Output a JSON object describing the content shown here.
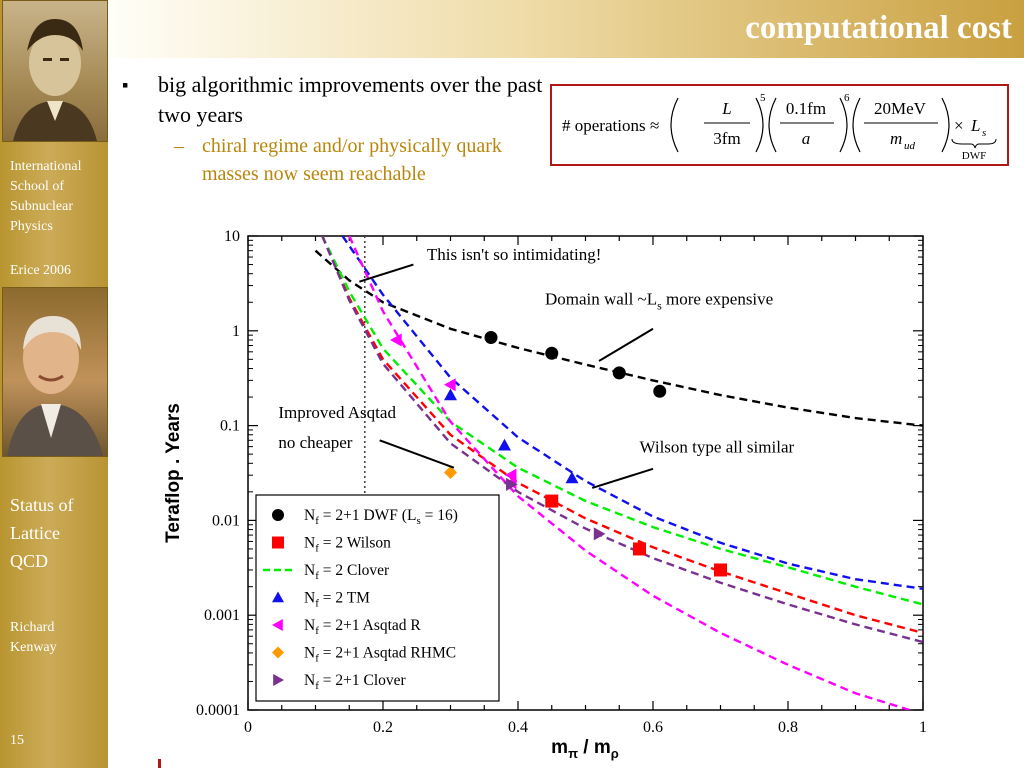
{
  "sidebar": {
    "school": "International School of Subnuclear Physics",
    "event": "Erice 2006",
    "talk": "Status of Lattice QCD",
    "author": "Richard Kenway",
    "page": "15"
  },
  "header": {
    "title": "computational cost"
  },
  "bullets": {
    "main": "big algorithmic improvements over the past two years",
    "sub_dash": "–",
    "sub": "chiral regime and/or physically quark masses now seem reachable"
  },
  "formula": {
    "lhs": "# operations",
    "approx": "≈",
    "f1_num": "L",
    "f1_den": "3fm",
    "f1_exp": "5",
    "f2_num": "0.1fm",
    "f2_den": "a",
    "f2_exp": "6",
    "f3_num": "20MeV",
    "f3_den": "m",
    "f3_den_sub": "ud",
    "times": "×",
    "ls": "L",
    "ls_sub": "s",
    "brace_label": "DWF"
  },
  "colors": {
    "accent": "#b01818",
    "sub_bullet": "#b8860b",
    "sidebar": "#c4a24a",
    "dwf": "#000000",
    "wilson": "#ff0000",
    "clover": "#00ee00",
    "tm": "#1010ee",
    "asqtad_r": "#ff00ff",
    "asqtad_rhmc": "#ff9900",
    "clover21": "#7a3090"
  },
  "chart_data": {
    "type": "scatter",
    "title": "",
    "xlabel": "m",
    "xlabel_sub1": "π",
    "xlabel_sep": " / m",
    "xlabel_sub2": "ρ",
    "ylabel": "Teraflop . Years",
    "xlim": [
      0,
      1
    ],
    "ylim": [
      0.0001,
      10
    ],
    "yscale": "log",
    "grid": false,
    "x_ticks": [
      "0",
      "0.2",
      "0.4",
      "0.6",
      "0.8",
      "1"
    ],
    "y_ticks": [
      "0.0001",
      "0.001",
      "0.01",
      "0.1",
      "1",
      "10"
    ],
    "vline_x": 0.173,
    "series": [
      {
        "name": "N_f = 2+1 DWF (L_s = 16)",
        "marker": "circle",
        "color": "#000000",
        "points": [
          [
            0.36,
            0.85
          ],
          [
            0.45,
            0.58
          ],
          [
            0.55,
            0.36
          ],
          [
            0.61,
            0.23
          ]
        ],
        "curve": [
          [
            0.1,
            7.0
          ],
          [
            0.15,
            3.4
          ],
          [
            0.2,
            2.0
          ],
          [
            0.3,
            1.05
          ],
          [
            0.4,
            0.66
          ],
          [
            0.5,
            0.44
          ],
          [
            0.6,
            0.3
          ],
          [
            0.7,
            0.21
          ],
          [
            0.8,
            0.155
          ],
          [
            0.9,
            0.12
          ],
          [
            1.0,
            0.1
          ]
        ]
      },
      {
        "name": "N_f = 2 Wilson",
        "marker": "square",
        "color": "#ff0000",
        "points": [
          [
            0.45,
            0.016
          ],
          [
            0.58,
            0.005
          ],
          [
            0.7,
            0.003
          ]
        ],
        "curve": [
          [
            0.11,
            10
          ],
          [
            0.15,
            2.2
          ],
          [
            0.2,
            0.5
          ],
          [
            0.3,
            0.08
          ],
          [
            0.4,
            0.025
          ],
          [
            0.5,
            0.0105
          ],
          [
            0.6,
            0.0052
          ],
          [
            0.7,
            0.0029
          ],
          [
            0.8,
            0.0017
          ],
          [
            0.9,
            0.001
          ],
          [
            1.0,
            0.00065
          ]
        ]
      },
      {
        "name": "N_f = 2 Clover",
        "marker": "none",
        "color": "#00ee00",
        "points": [],
        "curve": [
          [
            0.11,
            10
          ],
          [
            0.15,
            2.6
          ],
          [
            0.2,
            0.65
          ],
          [
            0.3,
            0.11
          ],
          [
            0.4,
            0.036
          ],
          [
            0.5,
            0.016
          ],
          [
            0.6,
            0.0085
          ],
          [
            0.7,
            0.005
          ],
          [
            0.8,
            0.0032
          ],
          [
            0.9,
            0.002
          ],
          [
            1.0,
            0.0013
          ]
        ]
      },
      {
        "name": "N_f = 2 TM",
        "marker": "triangle",
        "color": "#1010ee",
        "points": [
          [
            0.3,
            0.21
          ],
          [
            0.38,
            0.062
          ],
          [
            0.48,
            0.028
          ]
        ],
        "curve": [
          [
            0.14,
            10
          ],
          [
            0.2,
            2.4
          ],
          [
            0.3,
            0.32
          ],
          [
            0.4,
            0.075
          ],
          [
            0.5,
            0.026
          ],
          [
            0.6,
            0.011
          ],
          [
            0.7,
            0.0058
          ],
          [
            0.8,
            0.0035
          ],
          [
            0.9,
            0.0024
          ],
          [
            1.0,
            0.0019
          ]
        ]
      },
      {
        "name": "N_f = 2+1 Asqtad R",
        "marker": "triangle-left",
        "color": "#ff00ff",
        "points": [
          [
            0.22,
            0.8
          ],
          [
            0.3,
            0.27
          ],
          [
            0.39,
            0.03
          ],
          [
            0.39,
            0.025
          ]
        ],
        "curve": [
          [
            0.15,
            10
          ],
          [
            0.2,
            1.6
          ],
          [
            0.3,
            0.11
          ],
          [
            0.4,
            0.018
          ],
          [
            0.5,
            0.0048
          ],
          [
            0.6,
            0.0016
          ],
          [
            0.7,
            0.00065
          ],
          [
            0.8,
            0.0003
          ],
          [
            0.9,
            0.00015
          ],
          [
            0.98,
            0.0001
          ]
        ]
      },
      {
        "name": "N_f = 2+1 Asqtad RHMC",
        "marker": "diamond",
        "color": "#ff9900",
        "points": [
          [
            0.3,
            0.032
          ]
        ],
        "curve": []
      },
      {
        "name": "N_f = 2+1 Clover",
        "marker": "triangle-right",
        "color": "#7a3090",
        "points": [
          [
            0.39,
            0.024
          ],
          [
            0.52,
            0.0072
          ]
        ],
        "curve": [
          [
            0.11,
            10
          ],
          [
            0.15,
            2.1
          ],
          [
            0.2,
            0.45
          ],
          [
            0.3,
            0.065
          ],
          [
            0.4,
            0.02
          ],
          [
            0.5,
            0.0082
          ],
          [
            0.6,
            0.004
          ],
          [
            0.7,
            0.0022
          ],
          [
            0.8,
            0.0013
          ],
          [
            0.9,
            0.0008
          ],
          [
            1.0,
            0.00052
          ]
        ]
      }
    ],
    "legend": {
      "placement": "bottom-left",
      "entries": [
        {
          "prefix": "N",
          "sub": "f",
          "text": " = 2+1 DWF (L",
          "sub2": "s",
          "text2": " = 16)",
          "marker": "circle",
          "color": "#000000",
          "dashed": false
        },
        {
          "prefix": "N",
          "sub": "f",
          "text": " = 2 Wilson",
          "sub2": "",
          "text2": "",
          "marker": "square",
          "color": "#ff0000",
          "dashed": false
        },
        {
          "prefix": "N",
          "sub": "f",
          "text": " = 2 Clover",
          "sub2": "",
          "text2": "",
          "marker": "none",
          "color": "#00ee00",
          "dashed": true
        },
        {
          "prefix": "N",
          "sub": "f",
          "text": " = 2 TM",
          "sub2": "",
          "text2": "",
          "marker": "triangle",
          "color": "#1010ee",
          "dashed": false
        },
        {
          "prefix": "N",
          "sub": "f",
          "text": " = 2+1 Asqtad R",
          "sub2": "",
          "text2": "",
          "marker": "triangle-left",
          "color": "#ff00ff",
          "dashed": false
        },
        {
          "prefix": "N",
          "sub": "f",
          "text": " = 2+1 Asqtad RHMC",
          "sub2": "",
          "text2": "",
          "marker": "diamond",
          "color": "#ff9900",
          "dashed": false
        },
        {
          "prefix": "N",
          "sub": "f",
          "text": " = 2+1 Clover",
          "sub2": "",
          "text2": "",
          "marker": "triangle-right",
          "color": "#7a3090",
          "dashed": false
        }
      ]
    },
    "annotations": [
      {
        "text": "This isn't so intimidating!",
        "x": 0.265,
        "y": 5.6,
        "tx": 0.165,
        "ty": 3.3,
        "ax": 0.245,
        "ay": 5.0
      },
      {
        "text": "Domain wall ~L",
        "sub": "s",
        "text2": " more expensive",
        "x": 0.44,
        "y": 1.9,
        "tx": 0.52,
        "ty": 0.48,
        "ax": 0.6,
        "ay": 1.05
      },
      {
        "text": "Improved Asqtad",
        "x": 0.045,
        "y": 0.12,
        "tx": null,
        "ty": null,
        "ax": null,
        "ay": null
      },
      {
        "text": "no cheaper",
        "x": 0.045,
        "y": 0.058,
        "tx": 0.305,
        "ty": 0.036,
        "ax": 0.195,
        "ay": 0.07
      },
      {
        "text": "Wilson type all similar",
        "x": 0.58,
        "y": 0.052,
        "tx": 0.51,
        "ty": 0.022,
        "ax": 0.6,
        "ay": 0.035
      }
    ]
  }
}
